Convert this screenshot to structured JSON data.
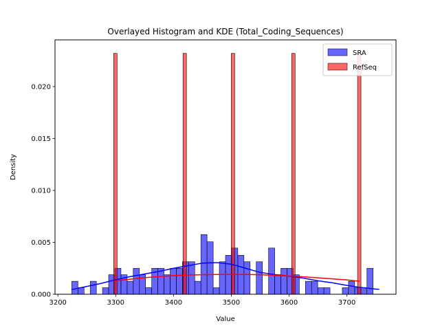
{
  "chart_data": {
    "type": "bar",
    "title": "Overlayed Histogram and KDE (Total_Coding_Sequences)",
    "xlabel": "Value",
    "ylabel": "Density",
    "xlim": [
      3195,
      3785
    ],
    "ylim": [
      0,
      0.0245
    ],
    "xticks": [
      3200,
      3300,
      3400,
      3500,
      3600,
      3700
    ],
    "xtick_labels": [
      "3200",
      "3300",
      "3400",
      "3500",
      "3600",
      "3700"
    ],
    "yticks": [
      0,
      0.005,
      0.01,
      0.015,
      0.02
    ],
    "ytick_labels": [
      "0.000",
      "0.005",
      "0.010",
      "0.015",
      "0.020"
    ],
    "grid": false,
    "legend": "top-right",
    "series": [
      {
        "name": "SRA",
        "kind": "histogram",
        "color": "#0000ff",
        "bin_start": 3224,
        "bin_width": 10.64,
        "values": [
          0.00125,
          0.00063,
          0,
          0.00125,
          0,
          0.00063,
          0.00188,
          0.0025,
          0.00188,
          0.00125,
          0.0025,
          0.00188,
          0.00063,
          0.0025,
          0.0025,
          0.00188,
          0.0025,
          0.0025,
          0.00313,
          0.00313,
          0.00125,
          0.00575,
          0.00505,
          0.00063,
          0.00313,
          0.00375,
          0.00445,
          0.00375,
          0.00313,
          0,
          0.00313,
          0,
          0.00445,
          0.00188,
          0.0025,
          0.0025,
          0.00188,
          0,
          0.00125,
          0.00125,
          0.00063,
          0.00063,
          0,
          0,
          0.00063,
          0.00125,
          0.00063,
          0.00063,
          0.0025
        ]
      },
      {
        "name": "RefSeq",
        "kind": "histogram",
        "color": "#ff0000",
        "bars": [
          {
            "x0": 3296.5,
            "x1": 3302.4,
            "value": 0.0232
          },
          {
            "x0": 3416.5,
            "x1": 3422.4,
            "value": 0.0232
          },
          {
            "x0": 3500.0,
            "x1": 3505.9,
            "value": 0.0232
          },
          {
            "x0": 3604.5,
            "x1": 3610.4,
            "value": 0.0232
          },
          {
            "x0": 3718.5,
            "x1": 3724.4,
            "value": 0.0232
          }
        ]
      }
    ],
    "kde": [
      {
        "name": "SRA",
        "color": "#0000ff",
        "x": [
          3224,
          3250,
          3275,
          3300,
          3325,
          3350,
          3375,
          3400,
          3425,
          3450,
          3475,
          3500,
          3525,
          3550,
          3575,
          3600,
          3625,
          3650,
          3675,
          3700,
          3725,
          3750,
          3756
        ],
        "y": [
          0.00045,
          0.00075,
          0.00105,
          0.0014,
          0.0017,
          0.00195,
          0.0022,
          0.0025,
          0.00275,
          0.003,
          0.00305,
          0.0029,
          0.0025,
          0.0021,
          0.0019,
          0.00175,
          0.00155,
          0.0013,
          0.0011,
          0.00085,
          0.00065,
          0.0005,
          0.00048
        ]
      },
      {
        "name": "RefSeq",
        "color": "#ff0000",
        "x": [
          3299,
          3325,
          3350,
          3375,
          3400,
          3425,
          3450,
          3475,
          3500,
          3525,
          3550,
          3575,
          3600,
          3625,
          3650,
          3675,
          3700,
          3722
        ],
        "y": [
          0.0013,
          0.00145,
          0.0016,
          0.0017,
          0.0018,
          0.00185,
          0.00188,
          0.0019,
          0.0019,
          0.0019,
          0.00188,
          0.00183,
          0.00176,
          0.00168,
          0.00158,
          0.00148,
          0.00138,
          0.00125
        ]
      }
    ]
  }
}
